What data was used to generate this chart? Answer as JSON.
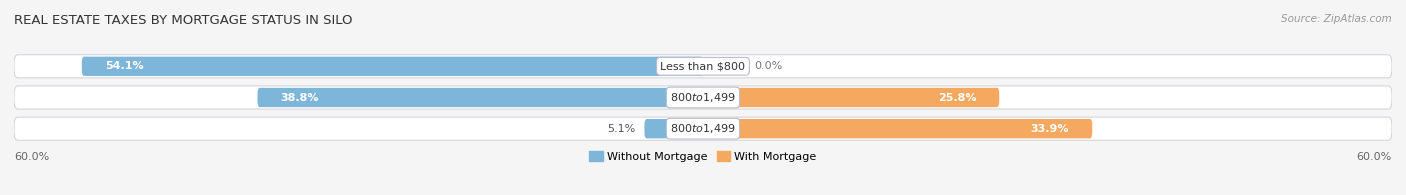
{
  "title": "REAL ESTATE TAXES BY MORTGAGE STATUS IN SILO",
  "source": "Source: ZipAtlas.com",
  "rows": [
    {
      "label": "Less than $800",
      "without": 54.1,
      "with": 0.0
    },
    {
      "label": "$800 to $1,499",
      "without": 38.8,
      "with": 25.8
    },
    {
      "label": "$800 to $1,499",
      "without": 5.1,
      "with": 33.9
    }
  ],
  "xlim": 60.0,
  "color_without": "#7EB6D9",
  "color_with": "#F4A860",
  "bar_height": 0.62,
  "background_bar_color": "#E8E8EE",
  "axis_label_left": "60.0%",
  "axis_label_right": "60.0%",
  "legend_without": "Without Mortgage",
  "legend_with": "With Mortgage",
  "title_fontsize": 9.5,
  "label_fontsize": 8.0,
  "tick_fontsize": 8.0,
  "source_fontsize": 7.5,
  "fig_bg": "#F5F5F5"
}
